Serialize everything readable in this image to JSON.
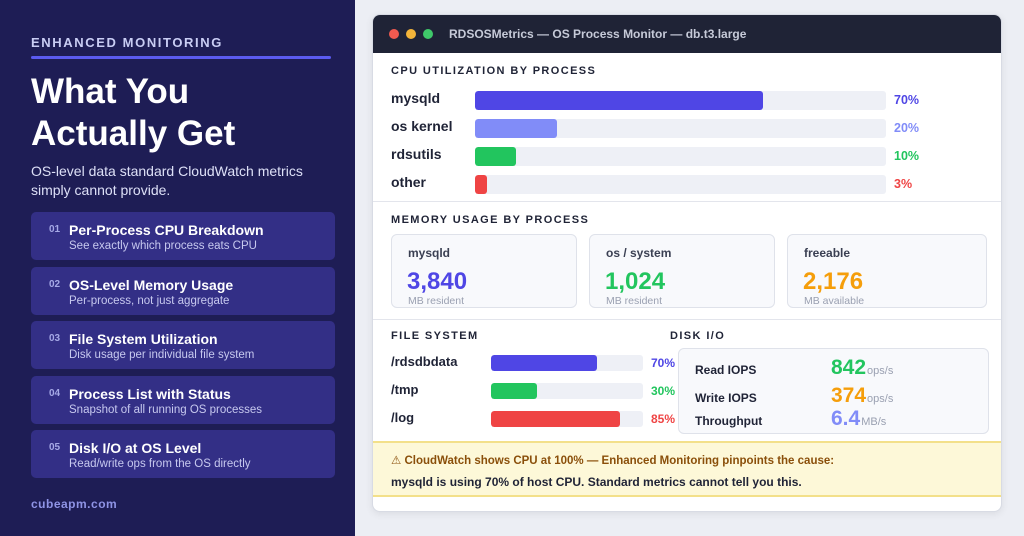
{
  "left": {
    "eyebrow": "ENHANCED MONITORING",
    "headline": "What You Actually Get",
    "subtitle": "OS-level data standard CloudWatch metrics simply cannot provide.",
    "features": [
      {
        "num": "01",
        "title": "Per-Process CPU Breakdown",
        "desc": "See exactly which process eats CPU"
      },
      {
        "num": "02",
        "title": "OS-Level Memory Usage",
        "desc": "Per-process, not just aggregate"
      },
      {
        "num": "03",
        "title": "File System Utilization",
        "desc": "Disk usage per individual file system"
      },
      {
        "num": "04",
        "title": "Process List with Status",
        "desc": "Snapshot of all running OS processes"
      },
      {
        "num": "05",
        "title": "Disk I/O at OS Level",
        "desc": "Read/write ops from the OS directly"
      }
    ],
    "site": "cubeapm.com"
  },
  "window": {
    "title": "RDSOSMetrics — OS Process Monitor — db.t3.large",
    "cpu": {
      "label": "CPU UTILIZATION BY PROCESS",
      "rows": [
        {
          "name": "mysqld",
          "percent": 70,
          "pct_label": "70%",
          "color": "#4f46e5"
        },
        {
          "name": "os kernel",
          "percent": 20,
          "pct_label": "20%",
          "color": "#818cf8"
        },
        {
          "name": "rdsutils",
          "percent": 10,
          "pct_label": "10%",
          "color": "#22c55e"
        },
        {
          "name": "other",
          "percent": 3,
          "pct_label": "3%",
          "color": "#ef4444"
        }
      ]
    },
    "memory": {
      "label": "MEMORY USAGE BY PROCESS",
      "cards": [
        {
          "name": "mysqld",
          "value": "3,840",
          "unit": "MB resident",
          "color": "#4f46e5"
        },
        {
          "name": "os / system",
          "value": "1,024",
          "unit": "MB resident",
          "color": "#22c55e"
        },
        {
          "name": "freeable",
          "value": "2,176",
          "unit": "MB available",
          "color": "#f59e0b"
        }
      ]
    },
    "filesystem": {
      "label": "FILE SYSTEM",
      "rows": [
        {
          "name": "/rdsdbdata",
          "percent": 70,
          "pct_label": "70%",
          "color": "#4f46e5"
        },
        {
          "name": "/tmp",
          "percent": 30,
          "pct_label": "30%",
          "color": "#22c55e"
        },
        {
          "name": "/log",
          "percent": 85,
          "pct_label": "85%",
          "color": "#ef4444"
        }
      ]
    },
    "disk_io": {
      "label": "DISK I/O",
      "rows": [
        {
          "name": "Read IOPS",
          "value": "842",
          "unit": "ops/s",
          "color": "#22c55e"
        },
        {
          "name": "Write IOPS",
          "value": "374",
          "unit": "ops/s",
          "color": "#f59e0b"
        },
        {
          "name": "Throughput",
          "value": "6.4",
          "unit": "MB/s",
          "color": "#818cf8"
        }
      ]
    },
    "alert": {
      "line1": "⚠ CloudWatch shows CPU at 100% — Enhanced Monitoring pinpoints the cause:",
      "line2": "mysqld is using 70% of host CPU. Standard metrics cannot tell you this."
    }
  }
}
